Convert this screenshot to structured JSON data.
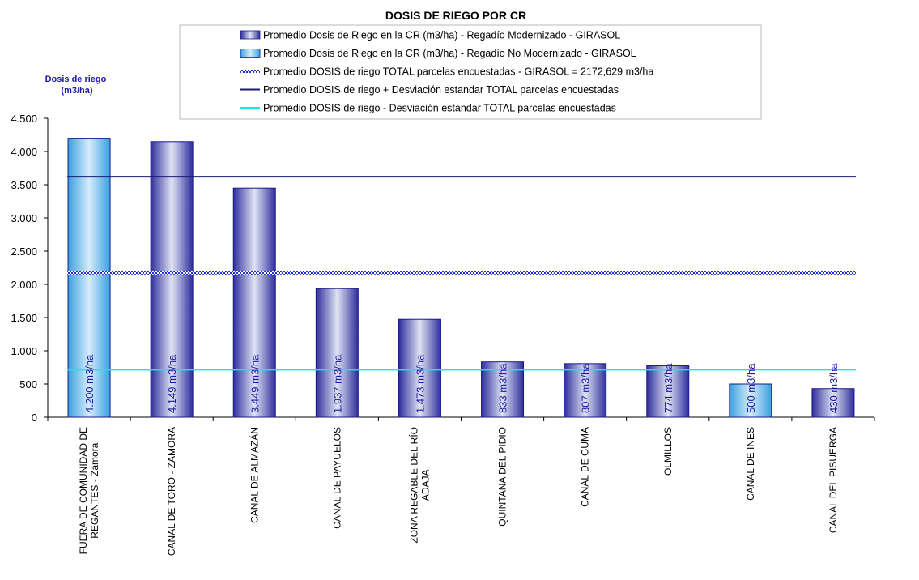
{
  "chart_data": {
    "type": "bar",
    "title": "DOSIS DE RIEGO POR CR",
    "ylabel": "Dosis de riego\n(m3/ha)",
    "xlabel": "",
    "ylim": [
      0,
      4500
    ],
    "yticks": [
      0,
      500,
      1000,
      1500,
      2000,
      2500,
      3000,
      3500,
      4000,
      4500
    ],
    "ytick_labels": [
      "0",
      "500",
      "1.000",
      "1.500",
      "2.000",
      "2.500",
      "3.000",
      "3.500",
      "4.000",
      "4.500"
    ],
    "grid": false,
    "legend_position": "top",
    "categories": [
      "FUERA DE COMUNIDAD DE REGANTES - Zamora",
      "CANAL DE TORO - ZAMORA",
      "CANAL DE ALMAZÁN",
      "CANAL DE PAYUELOS",
      "ZONA REGABLE DEL RÍO ADAJA",
      "QUINTANA DEL PIDIO",
      "CANAL DE GUMA",
      "OLMILLOS",
      "CANAL DE INES",
      "CANAL DEL PISUERGA"
    ],
    "category_lines": [
      [
        "FUERA DE COMUNIDAD DE",
        "REGANTES - Zamora"
      ],
      [
        "CANAL DE TORO - ZAMORA"
      ],
      [
        "CANAL DE ALMAZÁN"
      ],
      [
        "CANAL DE PAYUELOS"
      ],
      [
        "ZONA REGABLE DEL RÍO",
        "ADAJA"
      ],
      [
        "QUINTANA DEL PIDIO"
      ],
      [
        "CANAL DE GUMA"
      ],
      [
        "OLMILLOS"
      ],
      [
        "CANAL DE INES"
      ],
      [
        "CANAL DEL PISUERGA"
      ]
    ],
    "series": [
      {
        "name": "Promedio Dosis de Riego en la CR (m3/ha) - Regadío Modernizado - GIRASOL",
        "kind": "bar",
        "color": "#2e2e9e",
        "values": [
          null,
          4149,
          3449,
          1937,
          1473,
          833,
          807,
          774,
          null,
          430
        ],
        "labels": [
          null,
          "4.149 m3/ha",
          "3.449 m3/ha",
          "1.937 m3/ha",
          "1.473 m3/ha",
          "833 m3/ha",
          "807 m3/ha",
          "774 m3/ha",
          null,
          "430 m3/ha"
        ]
      },
      {
        "name": "Promedio Dosis de Riego en la CR (m3/ha) - Regadío No Modernizado - GIRASOL",
        "kind": "bar",
        "color": "#3aa0e0",
        "values": [
          4200,
          null,
          null,
          null,
          null,
          null,
          null,
          null,
          500,
          null
        ],
        "labels": [
          "4.200 m3/ha",
          null,
          null,
          null,
          null,
          null,
          null,
          null,
          "500 m3/ha",
          null
        ]
      },
      {
        "name": "Promedio DOSIS de riego TOTAL parcelas encuestadas - GIRASOL = 2172,629 m3/ha",
        "kind": "hline",
        "style": "wavy",
        "color": "#1f2fd0",
        "value": 2172.629
      },
      {
        "name": "Promedio DOSIS de riego + Desviación estandar TOTAL parcelas encuestadas",
        "kind": "hline",
        "style": "solid",
        "color": "#1b1b7a",
        "value": 3620
      },
      {
        "name": "Promedio DOSIS de riego - Desviación estandar TOTAL parcelas encuestadas",
        "kind": "hline",
        "style": "solid",
        "color": "#17e6e6",
        "value": 715
      }
    ]
  }
}
